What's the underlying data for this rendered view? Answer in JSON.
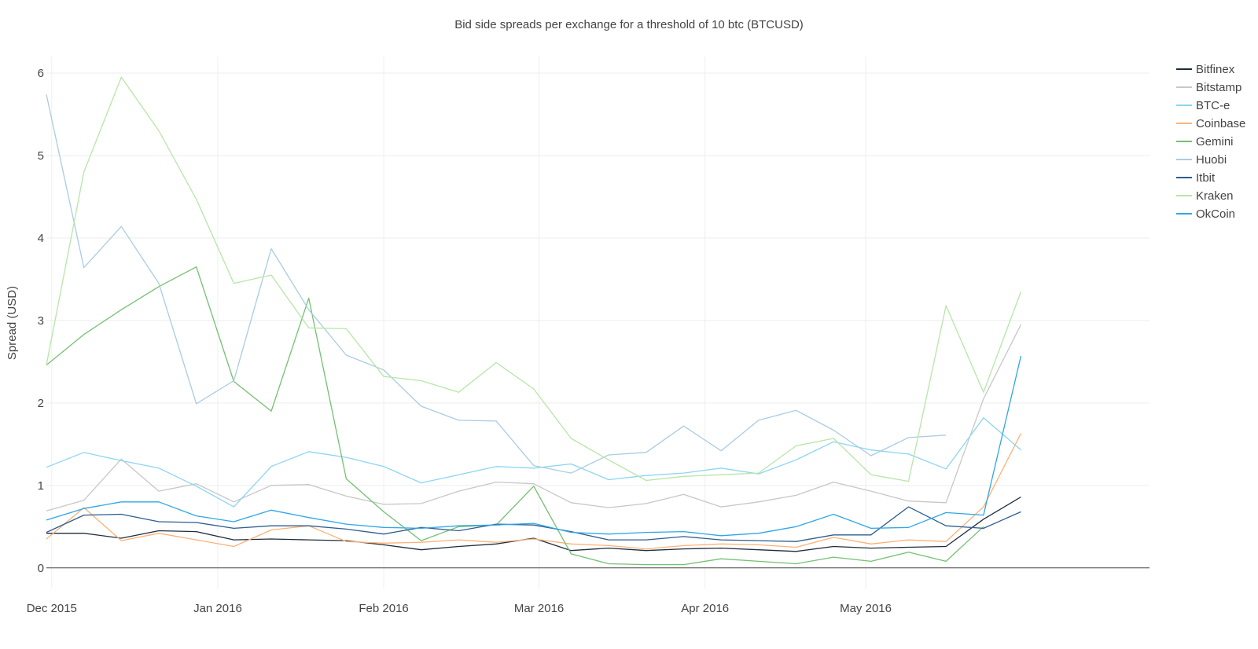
{
  "chart_data": {
    "type": "line",
    "title": "Bid side spreads per exchange for a threshold of 10 btc (BTCUSD)",
    "xlabel": "",
    "ylabel": "Spread (USD)",
    "ylim": [
      -0.25,
      6.2
    ],
    "xlim": [
      "2015-11-30",
      "2016-06-23"
    ],
    "grid": true,
    "legend_position": "top-right",
    "x_ticks": [
      {
        "date": "2015-12-01",
        "label": "Dec 2015"
      },
      {
        "date": "2016-01-01",
        "label": "Jan 2016"
      },
      {
        "date": "2016-02-01",
        "label": "Feb 2016"
      },
      {
        "date": "2016-03-01",
        "label": "Mar 2016"
      },
      {
        "date": "2016-04-01",
        "label": "Apr 2016"
      },
      {
        "date": "2016-05-01",
        "label": "May 2016"
      }
    ],
    "y_ticks": [
      0,
      1,
      2,
      3,
      4,
      5,
      6
    ],
    "x": [
      "2015-11-30",
      "2015-12-07",
      "2015-12-14",
      "2015-12-21",
      "2015-12-28",
      "2016-01-04",
      "2016-01-11",
      "2016-01-18",
      "2016-01-25",
      "2016-02-01",
      "2016-02-08",
      "2016-02-15",
      "2016-02-22",
      "2016-02-29",
      "2016-03-07",
      "2016-03-14",
      "2016-03-21",
      "2016-03-28",
      "2016-04-04",
      "2016-04-11",
      "2016-04-18",
      "2016-04-25",
      "2016-05-02",
      "2016-05-09",
      "2016-05-16",
      "2016-05-23",
      "2016-05-30",
      "2016-06-06",
      "2016-06-13",
      "2016-06-20"
    ],
    "series": [
      {
        "name": "Bitfinex",
        "color": "#1f2d3d",
        "values": [
          0.42,
          0.42,
          0.36,
          0.45,
          0.44,
          0.34,
          0.35,
          0.34,
          0.33,
          0.28,
          0.22,
          0.26,
          0.29,
          0.36,
          0.21,
          0.24,
          0.21,
          0.23,
          0.24,
          0.22,
          0.2,
          0.26,
          0.24,
          0.25,
          0.26,
          0.59,
          0.86,
          null,
          null,
          null
        ]
      },
      {
        "name": "Bitstamp",
        "color": "#c7c7c7",
        "values": [
          0.69,
          0.82,
          1.32,
          0.93,
          1.02,
          0.8,
          1.0,
          1.01,
          0.87,
          0.77,
          0.78,
          0.93,
          1.04,
          1.02,
          0.79,
          0.73,
          0.78,
          0.89,
          0.74,
          0.8,
          0.88,
          1.04,
          0.93,
          0.81,
          0.79,
          2.05,
          2.95,
          null,
          null,
          null
        ]
      },
      {
        "name": "BTC-e",
        "color": "#8ad5f5",
        "values": [
          1.22,
          1.4,
          1.3,
          1.21,
          0.99,
          0.74,
          1.23,
          1.41,
          1.34,
          1.23,
          1.03,
          1.13,
          1.23,
          1.21,
          1.26,
          1.07,
          1.12,
          1.15,
          1.21,
          1.14,
          1.31,
          1.53,
          1.43,
          1.38,
          1.2,
          1.82,
          1.43,
          null,
          null,
          null
        ]
      },
      {
        "name": "Coinbase",
        "color": "#fdb176",
        "values": [
          0.35,
          0.73,
          0.33,
          0.42,
          0.34,
          0.26,
          0.46,
          0.51,
          0.32,
          0.3,
          0.31,
          0.34,
          0.31,
          0.35,
          0.29,
          0.27,
          0.23,
          0.27,
          0.29,
          0.28,
          0.25,
          0.37,
          0.29,
          0.34,
          0.32,
          0.74,
          1.63,
          null,
          null,
          null
        ]
      },
      {
        "name": "Gemini",
        "color": "#72c172",
        "values": [
          2.46,
          2.83,
          3.13,
          3.41,
          3.65,
          2.26,
          1.9,
          3.27,
          1.08,
          0.68,
          0.33,
          0.5,
          0.52,
          0.99,
          0.17,
          0.05,
          0.04,
          0.04,
          0.11,
          0.08,
          0.05,
          0.13,
          0.08,
          0.19,
          0.08,
          0.5,
          null,
          null,
          null,
          null
        ]
      },
      {
        "name": "Huobi",
        "color": "#aacce2",
        "values": [
          5.74,
          3.64,
          4.14,
          3.45,
          1.99,
          2.27,
          3.87,
          3.13,
          2.58,
          2.4,
          1.96,
          1.79,
          1.78,
          1.24,
          1.15,
          1.37,
          1.4,
          1.72,
          1.42,
          1.79,
          1.91,
          1.67,
          1.36,
          1.58,
          1.61,
          null,
          null,
          null,
          null,
          null
        ]
      },
      {
        "name": "Itbit",
        "color": "#2d5d8f",
        "values": [
          0.43,
          0.64,
          0.65,
          0.56,
          0.55,
          0.48,
          0.51,
          0.51,
          0.47,
          0.41,
          0.49,
          0.45,
          0.53,
          0.52,
          0.44,
          0.34,
          0.34,
          0.38,
          0.34,
          0.33,
          0.32,
          0.4,
          0.4,
          0.74,
          0.51,
          0.48,
          0.68,
          null,
          null,
          null
        ]
      },
      {
        "name": "Kraken",
        "color": "#b7e6a6",
        "values": [
          2.46,
          4.8,
          5.95,
          5.3,
          4.47,
          3.45,
          3.55,
          2.91,
          2.9,
          2.32,
          2.27,
          2.13,
          2.49,
          2.17,
          1.57,
          1.31,
          1.06,
          1.11,
          1.13,
          1.15,
          1.48,
          1.57,
          1.13,
          1.05,
          3.18,
          2.13,
          3.35,
          null,
          null,
          null
        ]
      },
      {
        "name": "OkCoin",
        "color": "#2ea6e8",
        "values": [
          0.58,
          0.72,
          0.8,
          0.8,
          0.63,
          0.56,
          0.7,
          0.61,
          0.53,
          0.49,
          0.48,
          0.51,
          0.52,
          0.54,
          0.43,
          0.41,
          0.43,
          0.44,
          0.39,
          0.42,
          0.5,
          0.65,
          0.48,
          0.49,
          0.67,
          0.64,
          2.57,
          null,
          null,
          null
        ]
      }
    ]
  }
}
